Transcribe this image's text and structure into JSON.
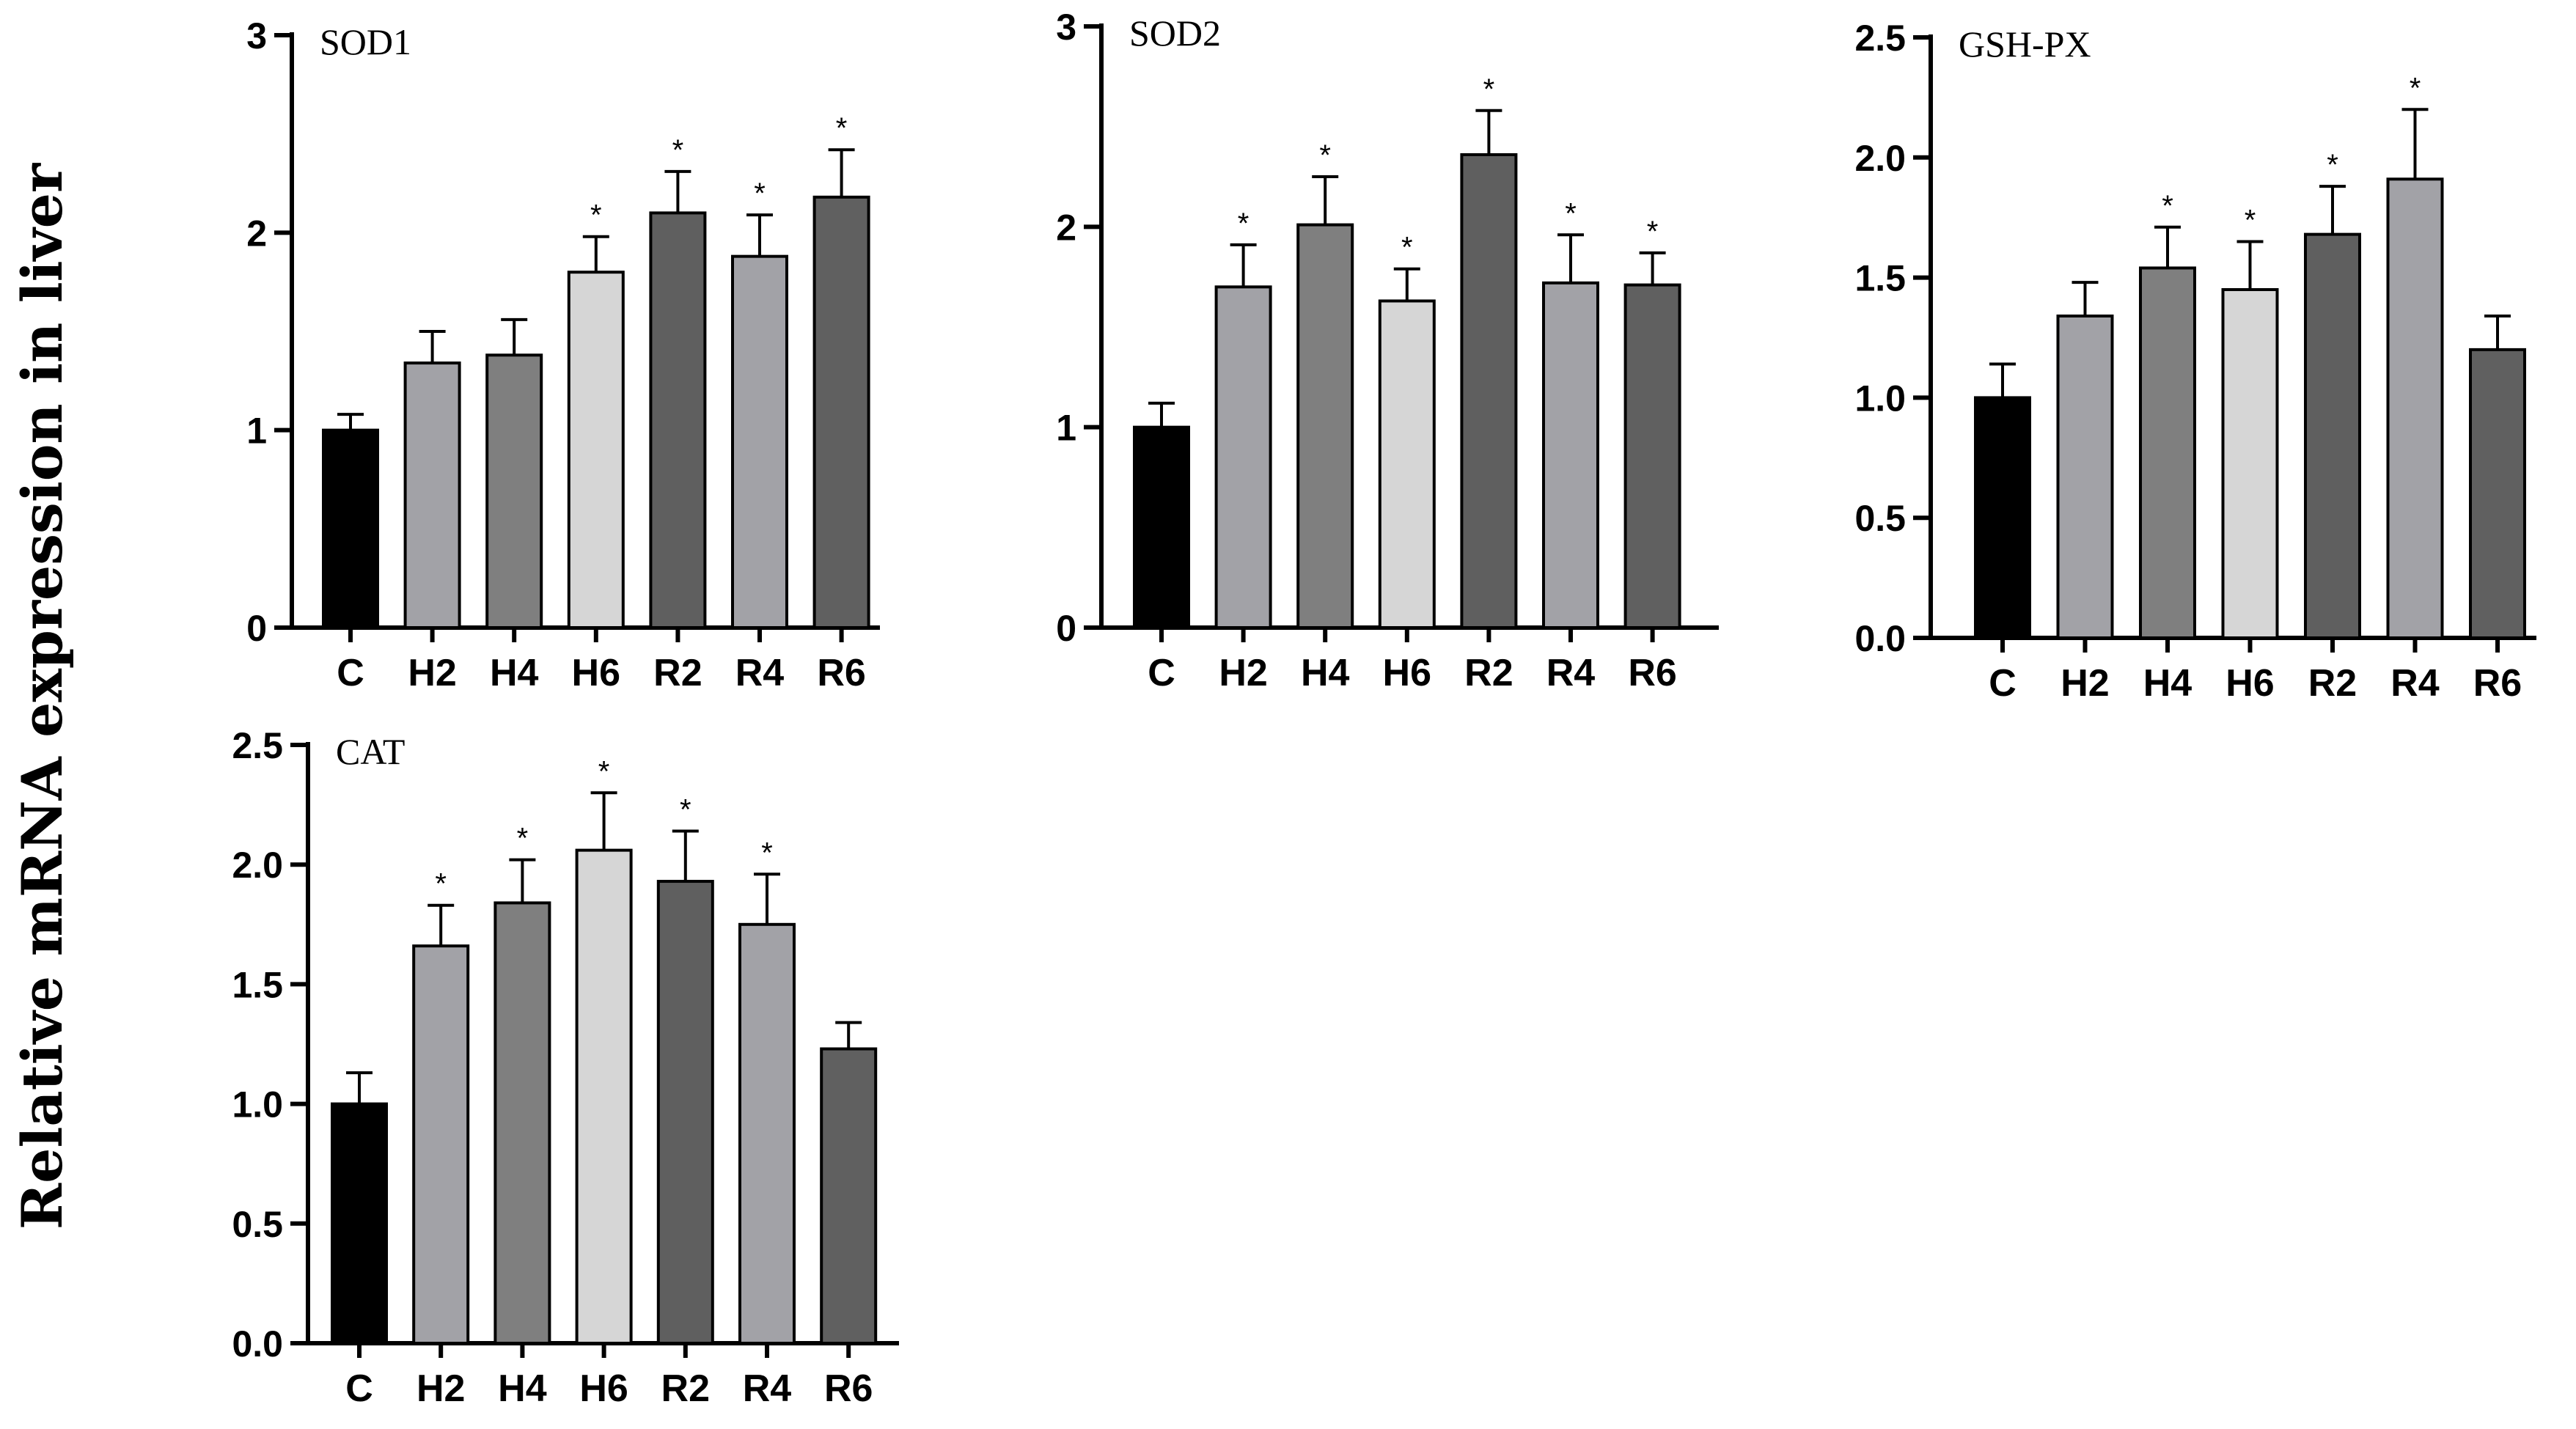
{
  "figure": {
    "ylabel": "Relative mRNA expression in liver"
  },
  "colors": {
    "C": "#000000",
    "H2": "#a2a2a7",
    "H4": "#7f7f7f",
    "H6": "#d6d6d6",
    "R2": "#5f5f5f",
    "R4": "#a2a2a7",
    "R6": "#606060"
  },
  "chart_data": [
    {
      "type": "bar",
      "title": "SOD1",
      "categories": [
        "C",
        "H2",
        "H4",
        "H6",
        "R2",
        "R4",
        "R6"
      ],
      "values": [
        1.0,
        1.34,
        1.38,
        1.8,
        2.1,
        1.88,
        2.18
      ],
      "errors": [
        0.08,
        0.16,
        0.18,
        0.18,
        0.21,
        0.21,
        0.24
      ],
      "significant": [
        false,
        false,
        false,
        true,
        true,
        true,
        true
      ],
      "significance_mark": "*",
      "ylim": [
        0,
        3
      ],
      "yticks": [
        0,
        1,
        2,
        3
      ],
      "ytick_labels": [
        "0",
        "1",
        "2",
        "3"
      ],
      "xlabel": "",
      "ylabel": ""
    },
    {
      "type": "bar",
      "title": "SOD2",
      "categories": [
        "C",
        "H2",
        "H4",
        "H6",
        "R2",
        "R4",
        "R6"
      ],
      "values": [
        1.0,
        1.7,
        2.01,
        1.63,
        2.36,
        1.72,
        1.71
      ],
      "errors": [
        0.12,
        0.21,
        0.24,
        0.16,
        0.22,
        0.24,
        0.16
      ],
      "significant": [
        false,
        true,
        true,
        true,
        true,
        true,
        true
      ],
      "significance_mark": "*",
      "ylim": [
        0,
        3
      ],
      "yticks": [
        0,
        1,
        2,
        3
      ],
      "ytick_labels": [
        "0",
        "1",
        "2",
        "3"
      ],
      "xlabel": "",
      "ylabel": ""
    },
    {
      "type": "bar",
      "title": "GSH-PX",
      "categories": [
        "C",
        "H2",
        "H4",
        "H6",
        "R2",
        "R4",
        "R6"
      ],
      "values": [
        1.0,
        1.34,
        1.54,
        1.45,
        1.68,
        1.91,
        1.2
      ],
      "errors": [
        0.14,
        0.14,
        0.17,
        0.2,
        0.2,
        0.29,
        0.14
      ],
      "significant": [
        false,
        false,
        true,
        true,
        true,
        true,
        false
      ],
      "significance_mark": "*",
      "ylim": [
        0,
        2.5
      ],
      "yticks": [
        0,
        0.5,
        1.0,
        1.5,
        2.0,
        2.5
      ],
      "ytick_labels": [
        "0.0",
        "0.5",
        "1.0",
        "1.5",
        "2.0",
        "2.5"
      ],
      "xlabel": "",
      "ylabel": ""
    },
    {
      "type": "bar",
      "title": "CAT",
      "categories": [
        "C",
        "H2",
        "H4",
        "H6",
        "R2",
        "R4",
        "R6"
      ],
      "values": [
        1.0,
        1.66,
        1.84,
        2.06,
        1.93,
        1.75,
        1.23
      ],
      "errors": [
        0.13,
        0.17,
        0.18,
        0.24,
        0.21,
        0.21,
        0.11
      ],
      "significant": [
        false,
        true,
        true,
        true,
        true,
        true,
        false
      ],
      "significance_mark": "*",
      "ylim": [
        0,
        2.5
      ],
      "yticks": [
        0,
        0.5,
        1.0,
        1.5,
        2.0,
        2.5
      ],
      "ytick_labels": [
        "0.0",
        "0.5",
        "1.0",
        "1.5",
        "2.0",
        "2.5"
      ],
      "xlabel": "",
      "ylabel": ""
    }
  ]
}
